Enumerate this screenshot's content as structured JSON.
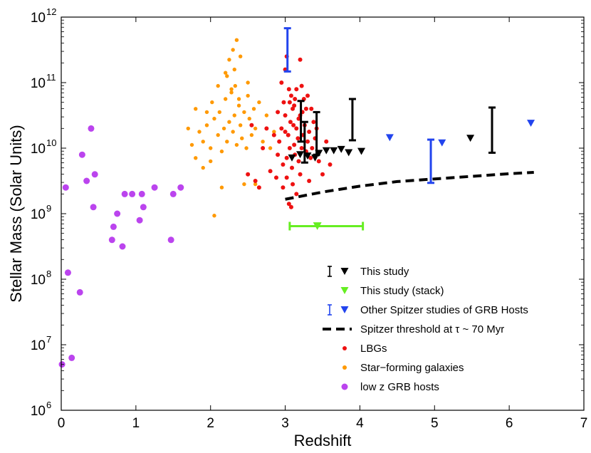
{
  "chart_data": {
    "type": "scatter",
    "xlabel": "Redshift",
    "ylabel": "Stellar Mass (Solar Units)",
    "xlim": [
      0,
      7
    ],
    "ylim_log10": [
      6,
      12
    ],
    "y_scale": "log",
    "grid": false,
    "legend_position": "bottom-right",
    "x_ticks": [
      "0",
      "1",
      "2",
      "3",
      "4",
      "5",
      "6",
      "7"
    ],
    "y_ticks": [
      {
        "base": "10",
        "exp": "6"
      },
      {
        "base": "10",
        "exp": "7"
      },
      {
        "base": "10",
        "exp": "8"
      },
      {
        "base": "10",
        "exp": "9"
      },
      {
        "base": "10",
        "exp": "10"
      },
      {
        "base": "10",
        "exp": "11"
      },
      {
        "base": "10",
        "exp": "12"
      }
    ],
    "legend": [
      {
        "label": "This study",
        "marker": "errorbar+triangle",
        "color": "#000000"
      },
      {
        "label": "This study (stack)",
        "marker": "triangle",
        "color": "#66ee22"
      },
      {
        "label": "Other Spitzer studies of GRB Hosts",
        "marker": "errorbar+triangle",
        "color": "#2244ee"
      },
      {
        "label": "Spitzer threshold at τ ~ 70 Myr",
        "marker": "dashed-line",
        "color": "#000000"
      },
      {
        "label": "LBGs",
        "marker": "dot",
        "color": "#ee1111"
      },
      {
        "label": "Star−forming galaxies",
        "marker": "dot",
        "color": "#ff9900"
      },
      {
        "label": "low z GRB hosts",
        "marker": "big-dot",
        "color": "#bb44ee"
      }
    ],
    "series": [
      {
        "name": "This study (upper limits)",
        "marker": "triangle",
        "color": "#000000",
        "points": [
          [
            3.09,
            9.85
          ],
          [
            3.2,
            9.9
          ],
          [
            3.3,
            9.88
          ],
          [
            3.4,
            9.85
          ],
          [
            3.45,
            9.92
          ],
          [
            3.55,
            9.96
          ],
          [
            3.65,
            9.96
          ],
          [
            3.75,
            9.98
          ],
          [
            3.85,
            9.93
          ],
          [
            4.02,
            9.95
          ],
          [
            5.48,
            10.15
          ]
        ]
      },
      {
        "name": "This study (ranges)",
        "marker": "errorbar",
        "color": "#000000",
        "ranges": [
          [
            3.21,
            10.1,
            10.72
          ],
          [
            3.26,
            9.78,
            10.4
          ],
          [
            3.42,
            9.9,
            10.55
          ],
          [
            3.9,
            10.12,
            10.75
          ],
          [
            5.77,
            9.93,
            10.62
          ]
        ]
      },
      {
        "name": "This study (stack)",
        "marker": "triangle",
        "color": "#66ee22",
        "points": [
          [
            3.43,
            8.81
          ]
        ],
        "xerr": [
          [
            3.06,
            4.04,
            8.81
          ]
        ]
      },
      {
        "name": "Other Spitzer studies of GRB Hosts (upper limits)",
        "marker": "triangle",
        "color": "#2244ee",
        "points": [
          [
            4.4,
            10.16
          ],
          [
            5.1,
            10.08
          ],
          [
            6.29,
            10.38
          ]
        ]
      },
      {
        "name": "Other Spitzer studies of GRB Hosts (ranges)",
        "marker": "errorbar",
        "color": "#2244ee",
        "ranges": [
          [
            3.03,
            11.17,
            11.83
          ],
          [
            4.95,
            9.47,
            10.13
          ]
        ]
      },
      {
        "name": "Spitzer threshold at τ ~ 70 Myr",
        "marker": "dashed-line",
        "color": "#000000",
        "points": [
          [
            3.0,
            9.22
          ],
          [
            3.5,
            9.33
          ],
          [
            4.0,
            9.42
          ],
          [
            4.5,
            9.49
          ],
          [
            5.0,
            9.53
          ],
          [
            5.5,
            9.57
          ],
          [
            6.0,
            9.61
          ],
          [
            6.33,
            9.63
          ]
        ]
      },
      {
        "name": "LBGs",
        "marker": "dot",
        "color": "#ee1111",
        "points": [
          [
            2.9,
            9.9
          ],
          [
            2.92,
            10.1
          ],
          [
            2.95,
            10.3
          ],
          [
            2.97,
            9.75
          ],
          [
            3.0,
            10.5
          ],
          [
            3.02,
            9.85
          ],
          [
            3.04,
            10.2
          ],
          [
            3.06,
            10.0
          ],
          [
            3.07,
            10.4
          ],
          [
            3.09,
            9.7
          ],
          [
            3.1,
            10.6
          ],
          [
            3.12,
            10.05
          ],
          [
            3.13,
            9.9
          ],
          [
            3.15,
            10.3
          ],
          [
            3.17,
            10.15
          ],
          [
            3.18,
            9.8
          ],
          [
            3.2,
            10.5
          ],
          [
            3.22,
            10.0
          ],
          [
            3.24,
            10.2
          ],
          [
            3.26,
            10.35
          ],
          [
            3.28,
            9.95
          ],
          [
            3.3,
            10.1
          ],
          [
            3.32,
            10.25
          ],
          [
            3.34,
            9.85
          ],
          [
            3.36,
            10.0
          ],
          [
            3.38,
            10.4
          ],
          [
            3.4,
            10.15
          ],
          [
            3.42,
            10.3
          ],
          [
            2.95,
            11.0
          ],
          [
            3.0,
            11.2
          ],
          [
            3.02,
            11.4
          ],
          [
            3.08,
            10.8
          ],
          [
            3.12,
            10.65
          ],
          [
            3.15,
            10.9
          ],
          [
            3.2,
            11.35
          ],
          [
            3.25,
            10.75
          ],
          [
            3.28,
            10.6
          ],
          [
            3.22,
            10.95
          ],
          [
            3.05,
            10.9
          ],
          [
            2.98,
            10.7
          ],
          [
            3.1,
            9.45
          ],
          [
            3.15,
            9.3
          ],
          [
            3.05,
            9.15
          ],
          [
            3.08,
            9.1
          ],
          [
            2.97,
            9.4
          ],
          [
            2.6,
            9.5
          ],
          [
            2.65,
            9.4
          ],
          [
            2.7,
            10.0
          ],
          [
            2.75,
            10.3
          ],
          [
            2.8,
            9.65
          ],
          [
            2.85,
            10.2
          ],
          [
            2.88,
            9.55
          ],
          [
            2.55,
            10.35
          ],
          [
            2.5,
            9.6
          ],
          [
            3.45,
            9.8
          ],
          [
            3.5,
            9.6
          ],
          [
            3.55,
            10.1
          ],
          [
            3.6,
            9.75
          ],
          [
            3.35,
            10.6
          ],
          [
            3.3,
            10.8
          ],
          [
            2.9,
            10.55
          ],
          [
            3.18,
            10.45
          ],
          [
            3.23,
            10.55
          ],
          [
            3.13,
            10.75
          ],
          [
            3.06,
            10.7
          ],
          [
            3.0,
            10.25
          ],
          [
            3.11,
            10.35
          ],
          [
            3.02,
            9.55
          ],
          [
            3.2,
            9.6
          ],
          [
            3.32,
            9.5
          ]
        ]
      },
      {
        "name": "Star−forming galaxies",
        "marker": "dot",
        "color": "#ff9900",
        "points": [
          [
            1.7,
            10.3
          ],
          [
            1.75,
            10.05
          ],
          [
            1.8,
            10.6
          ],
          [
            1.85,
            10.25
          ],
          [
            1.9,
            10.1
          ],
          [
            1.95,
            10.35
          ],
          [
            2.0,
            10.0
          ],
          [
            2.02,
            10.7
          ],
          [
            2.05,
            10.45
          ],
          [
            2.1,
            10.2
          ],
          [
            2.12,
            10.55
          ],
          [
            2.15,
            9.95
          ],
          [
            2.18,
            10.3
          ],
          [
            2.2,
            10.75
          ],
          [
            2.22,
            10.1
          ],
          [
            2.25,
            10.4
          ],
          [
            2.28,
            10.9
          ],
          [
            2.3,
            10.25
          ],
          [
            2.32,
            10.5
          ],
          [
            2.35,
            10.05
          ],
          [
            2.38,
            10.65
          ],
          [
            2.4,
            10.35
          ],
          [
            2.42,
            10.15
          ],
          [
            2.45,
            10.55
          ],
          [
            2.48,
            10.0
          ],
          [
            2.5,
            10.8
          ],
          [
            2.52,
            10.45
          ],
          [
            2.55,
            10.2
          ],
          [
            2.58,
            10.6
          ],
          [
            2.6,
            10.3
          ],
          [
            2.65,
            10.7
          ],
          [
            2.7,
            10.1
          ],
          [
            2.75,
            10.5
          ],
          [
            2.8,
            10.0
          ],
          [
            2.85,
            10.25
          ],
          [
            2.2,
            11.15
          ],
          [
            2.25,
            11.35
          ],
          [
            2.3,
            11.5
          ],
          [
            2.35,
            11.65
          ],
          [
            2.4,
            11.4
          ],
          [
            2.28,
            10.85
          ],
          [
            2.1,
            10.95
          ],
          [
            2.15,
            9.4
          ],
          [
            2.05,
            8.97
          ],
          [
            2.45,
            9.45
          ],
          [
            2.6,
            9.45
          ],
          [
            1.8,
            9.85
          ],
          [
            1.9,
            9.7
          ],
          [
            2.0,
            9.8
          ],
          [
            1.95,
            10.55
          ],
          [
            2.33,
            10.95
          ],
          [
            2.5,
            11.0
          ],
          [
            2.38,
            10.75
          ],
          [
            2.22,
            11.1
          ],
          [
            2.32,
            11.2
          ]
        ]
      },
      {
        "name": "low z GRB hosts",
        "marker": "big-dot",
        "color": "#bb44ee",
        "points": [
          [
            0.01,
            6.7
          ],
          [
            0.06,
            9.4
          ],
          [
            0.09,
            8.1
          ],
          [
            0.14,
            6.8
          ],
          [
            0.25,
            7.8
          ],
          [
            0.28,
            9.9
          ],
          [
            0.34,
            9.5
          ],
          [
            0.4,
            10.3
          ],
          [
            0.43,
            9.1
          ],
          [
            0.45,
            9.6
          ],
          [
            0.68,
            8.6
          ],
          [
            0.7,
            8.8
          ],
          [
            0.75,
            9.0
          ],
          [
            0.82,
            8.5
          ],
          [
            0.85,
            9.3
          ],
          [
            0.95,
            9.3
          ],
          [
            1.05,
            8.9
          ],
          [
            1.08,
            9.3
          ],
          [
            1.1,
            9.1
          ],
          [
            1.25,
            9.4
          ],
          [
            1.47,
            8.6
          ],
          [
            1.5,
            9.3
          ],
          [
            1.6,
            9.4
          ]
        ]
      }
    ]
  }
}
